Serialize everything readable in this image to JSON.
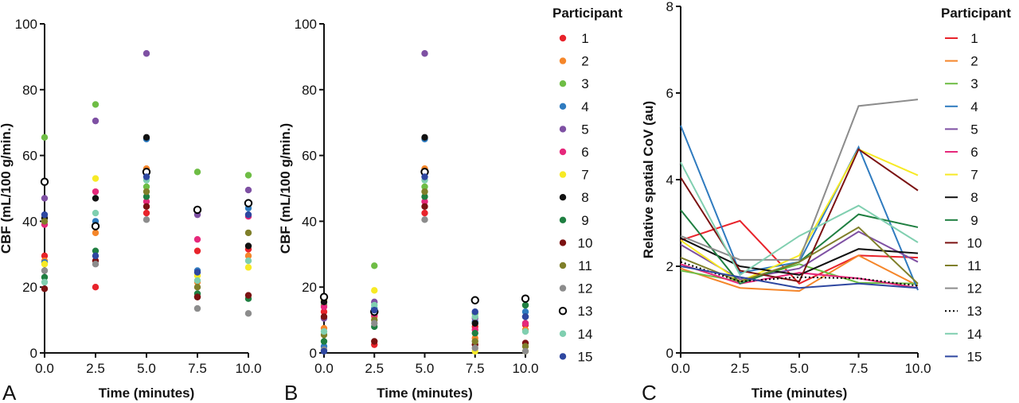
{
  "figure": {
    "panels": [
      "A",
      "B",
      "C"
    ]
  },
  "participants": [
    "1",
    "2",
    "3",
    "4",
    "5",
    "6",
    "7",
    "8",
    "9",
    "10",
    "11",
    "12",
    "13",
    "14",
    "15"
  ],
  "participant_colors": [
    "#e8232b",
    "#f5862a",
    "#6ebd45",
    "#2f7bbf",
    "#7e50a3",
    "#e6287b",
    "#f7ea25",
    "#111111",
    "#1f7f41",
    "#7b1212",
    "#7f7f2a",
    "#8c8c8c",
    "#000000",
    "#80cfb0",
    "#2e47a0"
  ],
  "chart_data": [
    {
      "panel": "A",
      "type": "scatter",
      "xlabel": "Time (minutes)",
      "ylabel": "CBF (mL/100 g/min.)",
      "xlim": [
        0,
        10
      ],
      "ylim": [
        0,
        100
      ],
      "xticks": [
        "0.0",
        "2.5",
        "5.0",
        "7.5",
        "10.0"
      ],
      "yticks": [
        "0",
        "20",
        "40",
        "60",
        "80",
        "100"
      ],
      "x": [
        0,
        2.5,
        5,
        7.5,
        10
      ],
      "series": [
        {
          "name": "1",
          "values": [
            29.5,
            20,
            42.5,
            31,
            31.5
          ]
        },
        {
          "name": "2",
          "values": [
            28,
            36.5,
            56,
            21.5,
            29.5
          ]
        },
        {
          "name": "3",
          "values": [
            65.5,
            75.5,
            50.5,
            55,
            54
          ]
        },
        {
          "name": "4",
          "values": [
            27.5,
            40,
            65,
            25,
            44
          ]
        },
        {
          "name": "5",
          "values": [
            47,
            70.5,
            91,
            42,
            49.5
          ]
        },
        {
          "name": "6",
          "values": [
            39,
            49,
            46,
            34.5,
            41.5
          ]
        },
        {
          "name": "7",
          "values": [
            27,
            53,
            55,
            23.5,
            26
          ]
        },
        {
          "name": "8",
          "values": [
            41,
            47,
            65.5,
            17,
            32.5
          ]
        },
        {
          "name": "9",
          "values": [
            23,
            31,
            47.5,
            18,
            16.5
          ]
        },
        {
          "name": "10",
          "values": [
            19.5,
            28,
            44.5,
            17,
            17.5
          ]
        },
        {
          "name": "11",
          "values": [
            40,
            38.5,
            49,
            20,
            36.5
          ]
        },
        {
          "name": "12",
          "values": [
            25,
            27,
            40.5,
            13.5,
            12
          ]
        },
        {
          "name": "13",
          "values": [
            52,
            38.5,
            55,
            43.5,
            45.5
          ]
        },
        {
          "name": "14",
          "values": [
            21.5,
            42.5,
            52.5,
            22,
            28
          ]
        },
        {
          "name": "15",
          "values": [
            42,
            29.5,
            53.5,
            24.5,
            42
          ]
        }
      ]
    },
    {
      "panel": "B",
      "type": "scatter",
      "xlabel": "Time (minutes)",
      "ylabel": "CBF (mL/100 g/min.)",
      "xlim": [
        0,
        10
      ],
      "ylim": [
        0,
        100
      ],
      "xticks": [
        "0.0",
        "2.5",
        "5.0",
        "7.5",
        "10.0"
      ],
      "yticks": [
        "0",
        "20",
        "40",
        "60",
        "80",
        "100"
      ],
      "x": [
        0,
        2.5,
        5,
        7.5,
        10
      ],
      "series": [
        {
          "name": "1",
          "values": [
            12.5,
            2.5,
            42.5,
            8,
            8.5
          ]
        },
        {
          "name": "2",
          "values": [
            7.5,
            11,
            56,
            4.5,
            7
          ]
        },
        {
          "name": "3",
          "values": [
            14.5,
            26.5,
            50.5,
            12,
            14.5
          ]
        },
        {
          "name": "4",
          "values": [
            2,
            13.5,
            65,
            9.5,
            12.5
          ]
        },
        {
          "name": "5",
          "values": [
            10.5,
            15.5,
            91,
            10.5,
            9
          ]
        },
        {
          "name": "6",
          "values": [
            14,
            11.5,
            46,
            7,
            9
          ]
        },
        {
          "name": "7",
          "values": [
            16,
            19,
            55,
            0.5,
            0.5
          ]
        },
        {
          "name": "8",
          "values": [
            15.5,
            12.5,
            65.5,
            9,
            11
          ]
        },
        {
          "name": "9",
          "values": [
            3.5,
            8,
            47.5,
            6,
            14.5
          ]
        },
        {
          "name": "10",
          "values": [
            11,
            3.5,
            44.5,
            2.5,
            3
          ]
        },
        {
          "name": "11",
          "values": [
            5.5,
            10,
            49,
            3.5,
            2
          ]
        },
        {
          "name": "12",
          "values": [
            1,
            9,
            40.5,
            1.5,
            0.5
          ]
        },
        {
          "name": "13",
          "values": [
            17,
            12.5,
            55,
            16,
            16.5
          ]
        },
        {
          "name": "14",
          "values": [
            6.5,
            14.5,
            52.5,
            11,
            6.5
          ]
        },
        {
          "name": "15",
          "values": [
            0.5,
            13,
            53.5,
            12.5,
            11
          ]
        }
      ]
    },
    {
      "panel": "C",
      "type": "line",
      "xlabel": "Time (minutes)",
      "ylabel": "Relative spatial CoV (au)",
      "xlim": [
        0,
        10
      ],
      "ylim": [
        0,
        8
      ],
      "xticks": [
        "0.0",
        "2.5",
        "5.0",
        "7.5",
        "10.0"
      ],
      "yticks": [
        "0",
        "2",
        "4",
        "6",
        "8"
      ],
      "x": [
        0,
        2.5,
        5,
        7.5,
        10
      ],
      "series": [
        {
          "name": "1",
          "values": [
            2.6,
            3.05,
            1.6,
            2.25,
            2.2
          ]
        },
        {
          "name": "2",
          "values": [
            1.95,
            1.5,
            1.43,
            2.25,
            1.55
          ]
        },
        {
          "name": "3",
          "values": [
            1.9,
            1.65,
            2.05,
            1.62,
            1.6
          ]
        },
        {
          "name": "4",
          "values": [
            5.25,
            1.85,
            2.1,
            4.75,
            1.45
          ]
        },
        {
          "name": "5",
          "values": [
            2.5,
            1.7,
            1.95,
            2.8,
            2.1
          ]
        },
        {
          "name": "6",
          "values": [
            2.05,
            1.6,
            1.85,
            1.72,
            1.5
          ]
        },
        {
          "name": "7",
          "values": [
            2.6,
            1.65,
            2.25,
            4.7,
            4.1
          ]
        },
        {
          "name": "8",
          "values": [
            2.65,
            2.0,
            1.8,
            2.4,
            2.3
          ]
        },
        {
          "name": "9",
          "values": [
            3.3,
            1.6,
            2.1,
            3.2,
            2.9
          ]
        },
        {
          "name": "10",
          "values": [
            4.05,
            1.9,
            1.65,
            4.7,
            3.75
          ]
        },
        {
          "name": "11",
          "values": [
            2.2,
            1.65,
            2.1,
            2.9,
            1.6
          ]
        },
        {
          "name": "12",
          "values": [
            2.7,
            2.15,
            2.15,
            5.7,
            5.85
          ]
        },
        {
          "name": "13",
          "values": [
            2.1,
            1.65,
            1.75,
            1.72,
            1.55
          ]
        },
        {
          "name": "14",
          "values": [
            4.4,
            1.8,
            2.7,
            3.4,
            2.55
          ]
        },
        {
          "name": "15",
          "values": [
            2.0,
            1.75,
            1.5,
            1.6,
            1.5
          ]
        }
      ]
    }
  ]
}
